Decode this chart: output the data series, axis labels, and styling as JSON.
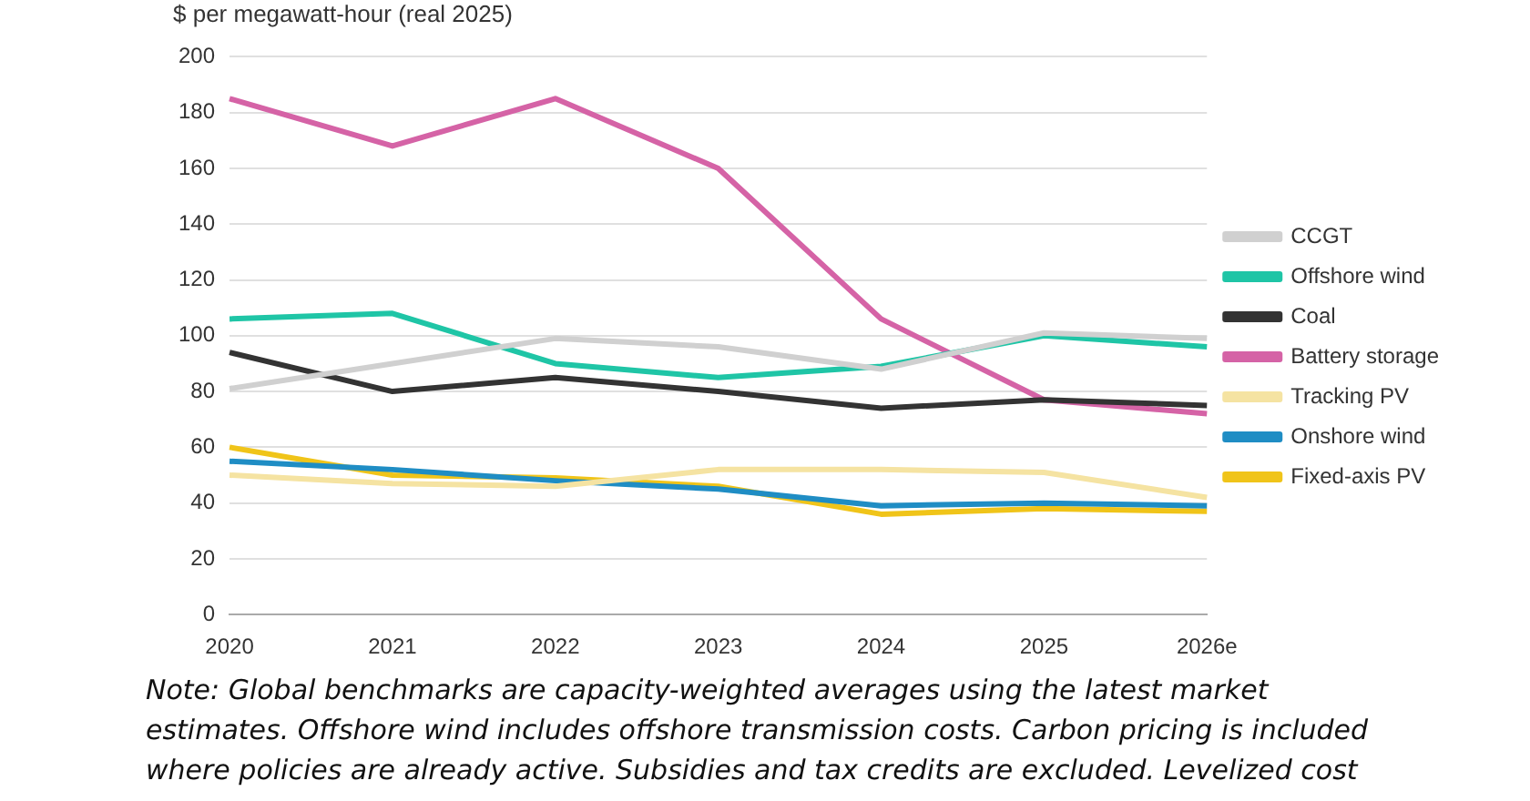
{
  "chart_data": {
    "type": "line",
    "ylabel": "$ per megawatt-hour (real 2025)",
    "categories": [
      "2020",
      "2021",
      "2022",
      "2023",
      "2024",
      "2025",
      "2026e"
    ],
    "series": [
      {
        "name": "CCGT",
        "color": "#d0d0d0",
        "values": [
          81,
          90,
          99,
          96,
          88,
          101,
          99
        ]
      },
      {
        "name": "Offshore wind",
        "color": "#1fc5a6",
        "values": [
          106,
          108,
          90,
          85,
          89,
          100,
          96
        ]
      },
      {
        "name": "Coal",
        "color": "#333333",
        "values": [
          94,
          80,
          85,
          80,
          74,
          77,
          75
        ]
      },
      {
        "name": "Battery storage",
        "color": "#d563a6",
        "values": [
          185,
          168,
          185,
          160,
          106,
          77,
          72
        ]
      },
      {
        "name": "Tracking PV",
        "color": "#f5e3a2",
        "values": [
          50,
          47,
          46,
          52,
          52,
          51,
          42
        ]
      },
      {
        "name": "Onshore wind",
        "color": "#1f8dc4",
        "values": [
          55,
          52,
          48,
          45,
          39,
          40,
          39
        ]
      },
      {
        "name": "Fixed-axis PV",
        "color": "#f0c419",
        "values": [
          60,
          50,
          49,
          46,
          36,
          38,
          37
        ]
      }
    ],
    "ylim": [
      0,
      200
    ],
    "yticks": [
      0,
      20,
      40,
      60,
      80,
      100,
      120,
      140,
      160,
      180,
      200
    ],
    "grid": "y",
    "legend": "right",
    "marker": "none",
    "line_style": "solid",
    "annotations": [
      "Note: Global benchmarks are capacity-weighted averages using the latest market estimates. Offshore wind includes offshore transmission costs. Carbon pricing is included where policies are already active. Subsidies and tax credits are excluded. Levelized cost"
    ]
  }
}
